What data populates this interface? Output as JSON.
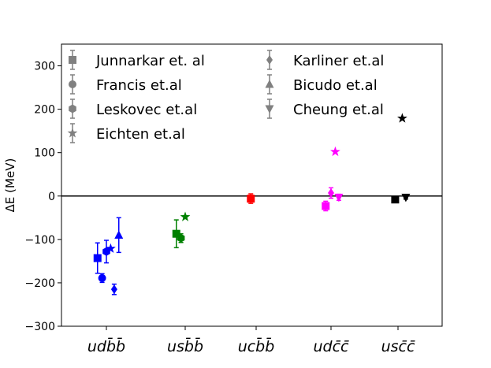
{
  "chart_data": {
    "type": "scatter",
    "ylabel": "ΔE (MeV)",
    "ylim": [
      -300,
      350
    ],
    "yticks": [
      -300,
      -200,
      -100,
      0,
      100,
      200,
      300
    ],
    "categories": [
      "udb̄b̄",
      "usb̄b̄",
      "ucb̄b̄",
      "udc̄c̄",
      "usc̄c̄"
    ],
    "reference_line": 0,
    "grid": false,
    "legend_position": "top",
    "colors": {
      "udb̄b̄": "#0000ff",
      "usb̄b̄": "#008000",
      "ucb̄b̄": "#ff0000",
      "udc̄c̄": "#ff00ff",
      "usc̄c̄": "#000000",
      "legend": "#808080"
    },
    "series": [
      {
        "name": "Junnarkar et. al",
        "marker": "square",
        "points": [
          {
            "category": "udb̄b̄",
            "x": -0.25,
            "y": -143,
            "err": 35
          },
          {
            "category": "usb̄b̄",
            "x": -0.25,
            "y": -87,
            "err": 32
          },
          {
            "category": "ucb̄b̄",
            "x": -0.15,
            "y": -6,
            "err": 11
          },
          {
            "category": "udc̄c̄",
            "x": -0.15,
            "y": -23,
            "err": 11
          },
          {
            "category": "usc̄c̄",
            "x": -0.08,
            "y": -8,
            "err": 4
          }
        ]
      },
      {
        "name": "Francis et.al",
        "marker": "circle",
        "points": [
          {
            "category": "udb̄b̄",
            "x": -0.12,
            "y": -189,
            "err": 10
          }
        ]
      },
      {
        "name": "Leskovec et.al",
        "marker": "hexagon",
        "points": [
          {
            "category": "udb̄b̄",
            "x": 0.0,
            "y": -128,
            "err": 26
          },
          {
            "category": "usb̄b̄",
            "x": -0.12,
            "y": -97,
            "err": 10
          }
        ]
      },
      {
        "name": "Eichten et.al",
        "marker": "star",
        "points": [
          {
            "category": "udb̄b̄",
            "x": 0.12,
            "y": -121
          },
          {
            "category": "usb̄b̄",
            "x": 0.0,
            "y": -48
          },
          {
            "category": "udc̄c̄",
            "x": 0.12,
            "y": 102
          },
          {
            "category": "usc̄c̄",
            "x": 0.12,
            "y": 179
          }
        ]
      },
      {
        "name": "Karliner et.al",
        "marker": "diamond",
        "points": [
          {
            "category": "udb̄b̄",
            "x": 0.22,
            "y": -215,
            "err": 12
          },
          {
            "category": "udc̄c̄",
            "x": 0.0,
            "y": 7,
            "err": 12
          }
        ]
      },
      {
        "name": "Bicudo et.al",
        "marker": "triangle-up",
        "points": [
          {
            "category": "udb̄b̄",
            "x": 0.35,
            "y": -90,
            "err": 40
          }
        ]
      },
      {
        "name": "Cheung et.al",
        "marker": "triangle-down",
        "points": [
          {
            "category": "udc̄c̄",
            "x": 0.22,
            "y": -3,
            "err": 7
          },
          {
            "category": "usc̄c̄",
            "x": 0.22,
            "y": -3,
            "err": 4
          }
        ]
      }
    ]
  }
}
